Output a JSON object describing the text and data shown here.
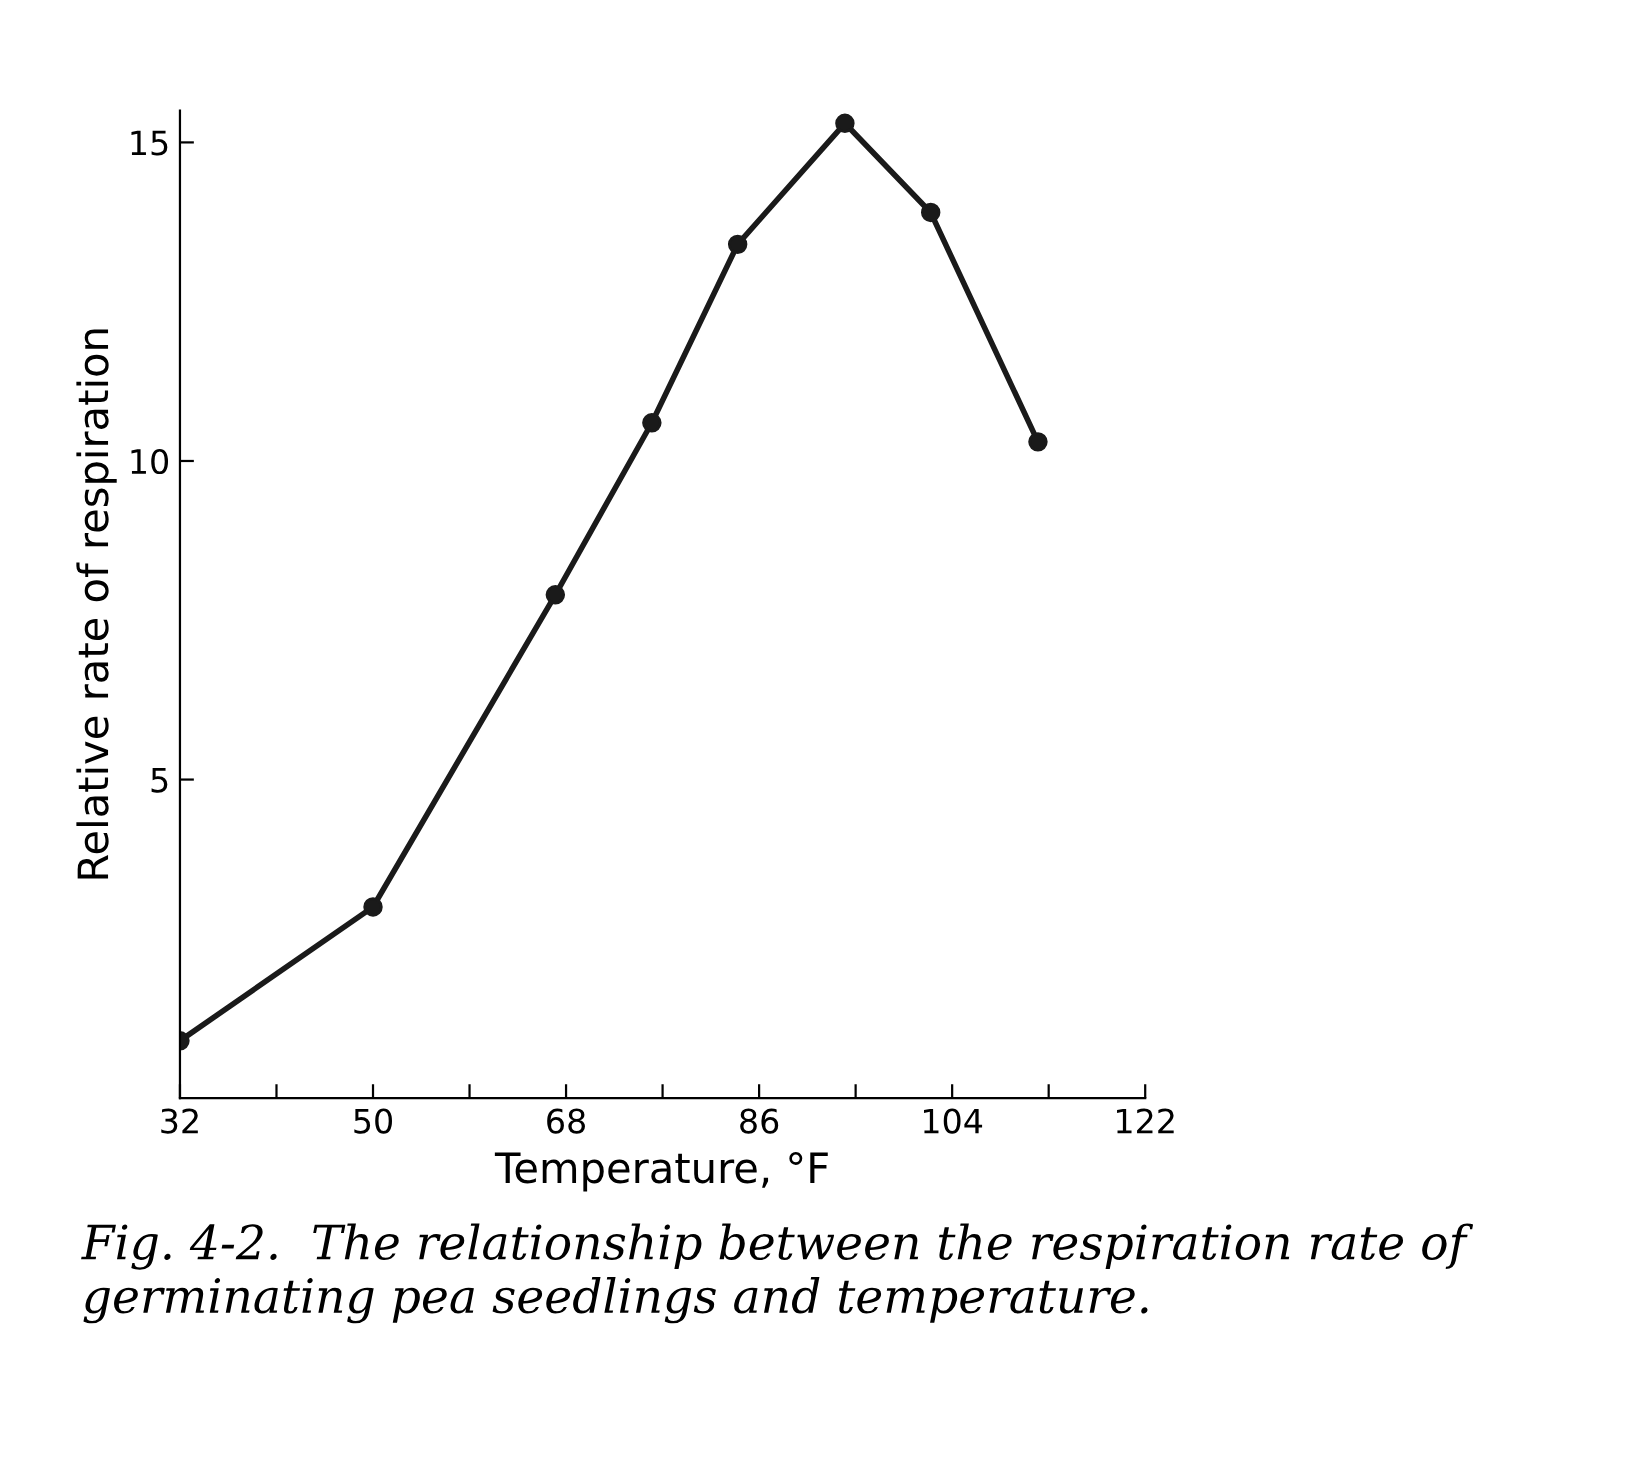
{
  "chart_data": {
    "type": "line",
    "xlabel": "Temperature, °F",
    "ylabel": "Relative rate of respiration",
    "x": [
      32,
      50,
      67,
      76,
      84,
      94,
      102,
      112
    ],
    "series": [
      {
        "color": "#1a1a1a",
        "values": [
          0.9,
          3.0,
          7.9,
          10.6,
          13.4,
          15.3,
          13.9,
          10.3
        ]
      }
    ],
    "xlim": [
      32,
      122
    ],
    "ylim": [
      0,
      15.5
    ],
    "xticks": [
      32,
      {
        "value": 41,
        "label": null
      },
      50,
      {
        "value": 59,
        "label": null
      },
      68,
      {
        "value": 77,
        "label": null
      },
      86,
      {
        "value": 95,
        "label": null
      },
      104,
      {
        "value": 113,
        "label": null
      },
      122
    ],
    "yticks": [
      5,
      10,
      15
    ],
    "marker": "circle",
    "line_style": "solid",
    "grid": false,
    "legend": false,
    "annotations": [
      "Fig. 4-2.  The relationship between the respiration rate of germinating pea seedlings and temperature."
    ]
  }
}
